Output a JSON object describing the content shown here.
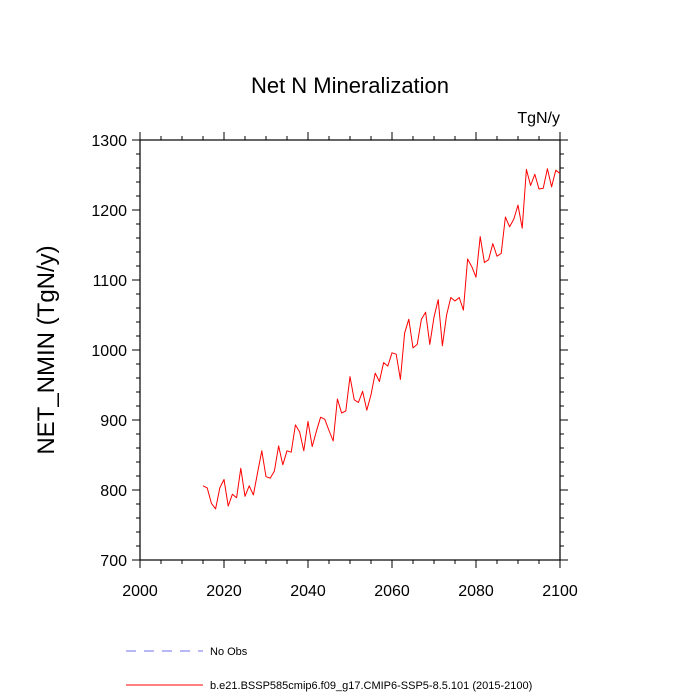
{
  "chart_data": {
    "type": "line",
    "title": "Net N Mineralization",
    "units_label": "TgN/y",
    "ylabel": "NET_NMIN  (TgN/y)",
    "xlabel": "",
    "xlim": [
      2000,
      2100
    ],
    "ylim": [
      700,
      1300
    ],
    "x_ticks": [
      2000,
      2020,
      2040,
      2060,
      2080,
      2100
    ],
    "y_ticks": [
      700,
      800,
      900,
      1000,
      1100,
      1200,
      1300
    ],
    "grid": false,
    "series": [
      {
        "name": "b.e21.BSSP585cmip6.f09_g17.CMIP6-SSP5-8.5.101 (2015-2100)",
        "color": "#ff0000",
        "style": "solid",
        "x": [
          2015,
          2016,
          2017,
          2018,
          2019,
          2020,
          2021,
          2022,
          2023,
          2024,
          2025,
          2026,
          2027,
          2028,
          2029,
          2030,
          2031,
          2032,
          2033,
          2034,
          2035,
          2036,
          2037,
          2038,
          2039,
          2040,
          2041,
          2042,
          2043,
          2044,
          2045,
          2046,
          2047,
          2048,
          2049,
          2050,
          2051,
          2052,
          2053,
          2054,
          2055,
          2056,
          2057,
          2058,
          2059,
          2060,
          2061,
          2062,
          2063,
          2064,
          2065,
          2066,
          2067,
          2068,
          2069,
          2070,
          2071,
          2072,
          2073,
          2074,
          2075,
          2076,
          2077,
          2078,
          2079,
          2080,
          2081,
          2082,
          2083,
          2084,
          2085,
          2086,
          2087,
          2088,
          2089,
          2090,
          2091,
          2092,
          2093,
          2094,
          2095,
          2096,
          2097,
          2098,
          2099,
          2100
        ],
        "values": [
          806,
          803,
          781,
          773,
          803,
          815,
          777,
          794,
          789,
          831,
          791,
          806,
          793,
          825,
          856,
          819,
          817,
          827,
          863,
          836,
          856,
          854,
          893,
          883,
          856,
          898,
          862,
          884,
          904,
          901,
          885,
          870,
          930,
          910,
          913,
          962,
          929,
          925,
          941,
          914,
          936,
          967,
          955,
          982,
          977,
          996,
          994,
          958,
          1024,
          1044,
          1003,
          1008,
          1044,
          1054,
          1008,
          1047,
          1072,
          1006,
          1050,
          1075,
          1070,
          1075,
          1057,
          1130,
          1119,
          1104,
          1162,
          1125,
          1129,
          1152,
          1134,
          1138,
          1190,
          1176,
          1187,
          1207,
          1174,
          1258,
          1235,
          1251,
          1230,
          1231,
          1259,
          1233,
          1257,
          1252
        ]
      }
    ],
    "legend": {
      "placement": "bottom-left",
      "entries": [
        {
          "label": "No Obs",
          "color": "#7070ee",
          "style": "dashed"
        },
        {
          "label": "b.e21.BSSP585cmip6.f09_g17.CMIP6-SSP5-8.5.101 (2015-2100)",
          "color": "#ff0000",
          "style": "solid"
        }
      ]
    }
  }
}
